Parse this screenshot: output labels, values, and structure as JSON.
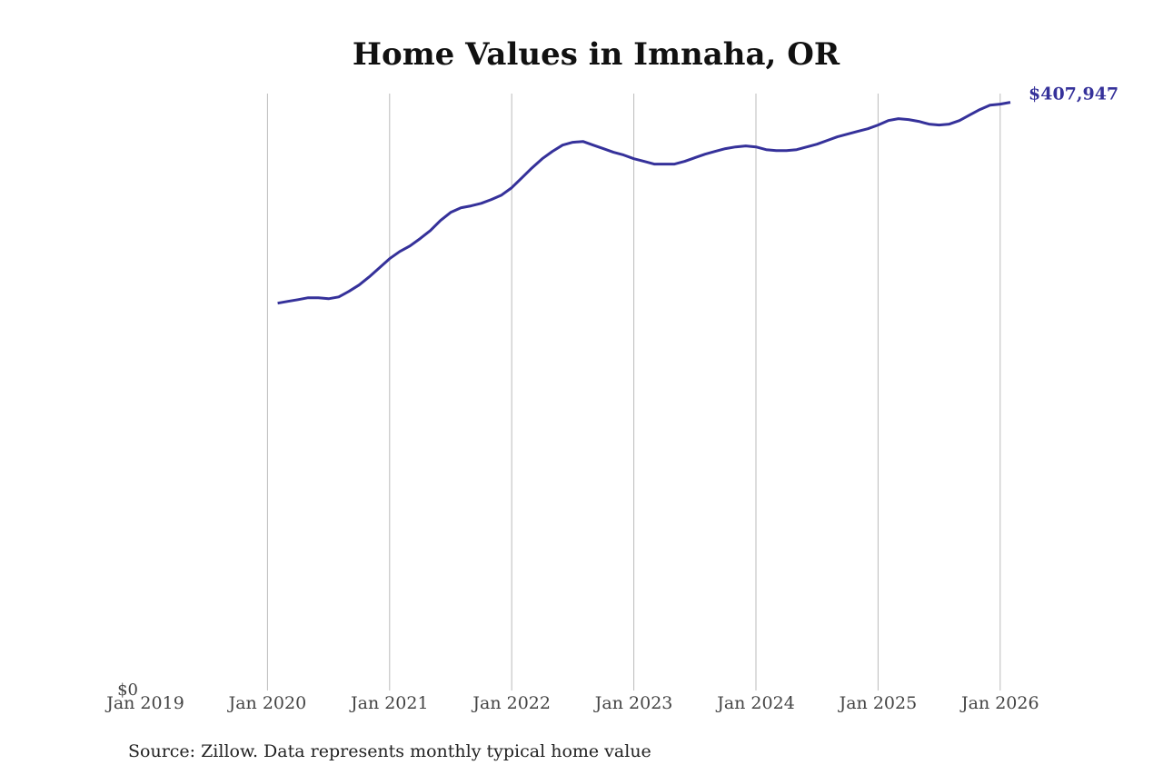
{
  "chart_data": {
    "type": "line",
    "title": "Home Values in Imnaha, OR",
    "source": "Source: Zillow. Data represents monthly typical home value",
    "x": [
      "2020-02",
      "2020-03",
      "2020-04",
      "2020-05",
      "2020-06",
      "2020-07",
      "2020-08",
      "2020-09",
      "2020-10",
      "2020-11",
      "2020-12",
      "2021-01",
      "2021-02",
      "2021-03",
      "2021-04",
      "2021-05",
      "2021-06",
      "2021-07",
      "2021-08",
      "2021-09",
      "2021-10",
      "2021-11",
      "2021-12",
      "2022-01",
      "2022-02",
      "2022-03",
      "2022-04",
      "2022-05",
      "2022-06",
      "2022-07",
      "2022-08",
      "2022-09",
      "2022-10",
      "2022-11",
      "2022-12",
      "2023-01",
      "2023-02",
      "2023-03",
      "2023-04",
      "2023-05",
      "2023-06",
      "2023-07",
      "2023-08",
      "2023-09",
      "2023-10",
      "2023-11",
      "2023-12",
      "2024-01",
      "2024-02",
      "2024-03",
      "2024-04",
      "2024-05",
      "2024-06",
      "2024-07",
      "2024-08",
      "2024-09",
      "2024-10",
      "2024-11",
      "2024-12",
      "2025-01",
      "2025-02",
      "2025-03",
      "2025-04",
      "2025-05",
      "2025-06",
      "2025-07",
      "2025-08",
      "2025-09",
      "2025-10",
      "2025-11",
      "2025-12",
      "2026-01",
      "2026-02"
    ],
    "series": [
      {
        "name": "Home value",
        "color": "#35319a",
        "values": [
          268600,
          269900,
          271100,
          272400,
          272400,
          271700,
          273000,
          276800,
          281200,
          286900,
          293200,
          299500,
          304500,
          308300,
          313400,
          319000,
          326000,
          331600,
          334800,
          336100,
          337900,
          340500,
          343600,
          348700,
          355600,
          362500,
          368800,
          373900,
          378300,
          380200,
          380800,
          378300,
          375800,
          373300,
          371400,
          368800,
          367000,
          365100,
          365100,
          365100,
          367000,
          369500,
          372000,
          373900,
          375800,
          377000,
          377700,
          377000,
          375100,
          374500,
          374500,
          375100,
          377000,
          378900,
          381500,
          384000,
          385900,
          387800,
          389600,
          392200,
          395300,
          396600,
          396000,
          394700,
          392800,
          392200,
          392800,
          395300,
          399100,
          402900,
          406000,
          406700,
          407947
        ],
        "value_labels": [
          null,
          null,
          null,
          null,
          null,
          null,
          null,
          null,
          null,
          null,
          null,
          null,
          null,
          null,
          null,
          null,
          null,
          null,
          null,
          null,
          null,
          null,
          null,
          null,
          null,
          null,
          null,
          null,
          null,
          null,
          null,
          null,
          null,
          null,
          null,
          null,
          null,
          null,
          null,
          null,
          null,
          null,
          null,
          null,
          null,
          null,
          null,
          null,
          null,
          null,
          null,
          null,
          null,
          null,
          null,
          null,
          null,
          null,
          null,
          null,
          null,
          null,
          null,
          null,
          null,
          null,
          null,
          null,
          null,
          null,
          null,
          null,
          "$407,947"
        ]
      }
    ],
    "xlim": [
      "2019-01",
      "2026-02"
    ],
    "xticks": [
      {
        "value": "2019-01",
        "label": "Jan 2019"
      },
      {
        "value": "2020-01",
        "label": "Jan 2020"
      },
      {
        "value": "2021-01",
        "label": "Jan 2021"
      },
      {
        "value": "2022-01",
        "label": "Jan 2022"
      },
      {
        "value": "2023-01",
        "label": "Jan 2023"
      },
      {
        "value": "2024-01",
        "label": "Jan 2024"
      },
      {
        "value": "2025-01",
        "label": "Jan 2025"
      },
      {
        "value": "2026-01",
        "label": "Jan 2026"
      }
    ],
    "ylim": [
      0,
      414000
    ],
    "yticks": [
      {
        "value": 0,
        "label": "$0"
      }
    ],
    "grid": "x"
  }
}
